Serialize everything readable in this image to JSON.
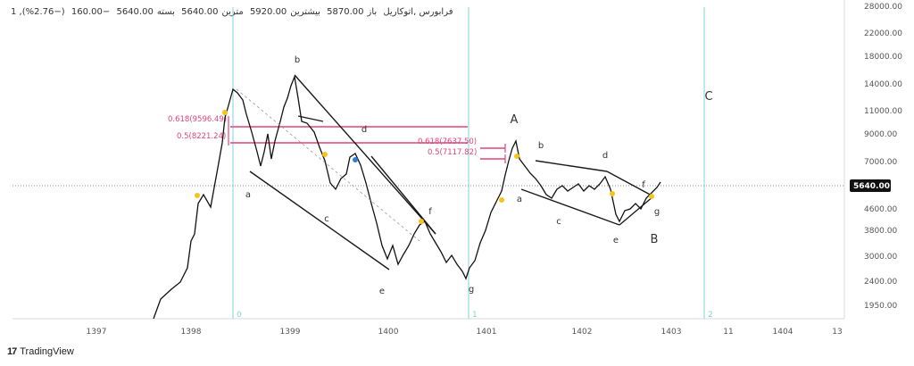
{
  "header": {
    "symbol": "1 ,فرابورس ,اتوکاریل",
    "open_label": "باز",
    "open": "5870.00",
    "high_label": "بیشترین",
    "high": "5920.00",
    "low_label": "مترین",
    "low": "5640.00",
    "close_label": "بسته",
    "close": "5640.00",
    "change": "−160.00",
    "change_pct": "(−2.76%)"
  },
  "brand": {
    "name": "TradingView",
    "logo": "17"
  },
  "colors": {
    "price": "#111111",
    "fib": "#e0447c",
    "cycle": "#7fd3d8",
    "trend": "#1a1a1a",
    "dot_yellow": "#f5c518",
    "dot_blue": "#2f7fd9",
    "last_price_bg": "#111111"
  },
  "chart_data": {
    "type": "line",
    "y_scale": "log",
    "y_ticks": [
      "28000.00",
      "22000.00",
      "18000.00",
      "14000.00",
      "11000.00",
      "9000.00",
      "7000.00",
      "5640.00",
      "4600.00",
      "3800.00",
      "3000.00",
      "2400.00",
      "1950.00"
    ],
    "last_price": "5640.00",
    "x_ticks": [
      "1397",
      "1398",
      "1399",
      "1400",
      "1401",
      "1402",
      "1403",
      "11",
      "1404",
      "13"
    ],
    "cycle_labels": [
      "0",
      "1",
      "2"
    ],
    "fib_labels": [
      "0.618(9596.49)",
      "0.5(8221.24)",
      "0.618(7637.50)",
      "0.5(7117.82)"
    ],
    "wave_labels": [
      "a",
      "b",
      "c",
      "d",
      "e",
      "f",
      "g",
      "a",
      "b",
      "c",
      "d",
      "e",
      "f",
      "g",
      "A",
      "B",
      "C"
    ]
  }
}
